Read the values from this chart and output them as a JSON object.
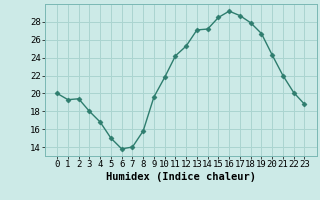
{
  "x": [
    0,
    1,
    2,
    3,
    4,
    5,
    6,
    7,
    8,
    9,
    10,
    11,
    12,
    13,
    14,
    15,
    16,
    17,
    18,
    19,
    20,
    21,
    22,
    23
  ],
  "y": [
    20.0,
    19.3,
    19.4,
    18.0,
    16.8,
    15.0,
    13.8,
    14.0,
    15.8,
    19.6,
    21.8,
    24.2,
    25.3,
    27.1,
    27.2,
    28.5,
    29.2,
    28.7,
    27.9,
    26.7,
    24.3,
    22.0,
    20.1,
    18.8
  ],
  "line_color": "#2e7d6e",
  "marker": "D",
  "marker_size": 2.5,
  "background_color": "#cceae7",
  "grid_color": "#aad4d0",
  "xlabel": "Humidex (Indice chaleur)",
  "ylim": [
    13,
    30
  ],
  "yticks": [
    14,
    16,
    18,
    20,
    22,
    24,
    26,
    28
  ],
  "xticks": [
    0,
    1,
    2,
    3,
    4,
    5,
    6,
    7,
    8,
    9,
    10,
    11,
    12,
    13,
    14,
    15,
    16,
    17,
    18,
    19,
    20,
    21,
    22,
    23
  ],
  "xlabel_fontsize": 7.5,
  "tick_fontsize": 6.5,
  "line_width": 1.0
}
